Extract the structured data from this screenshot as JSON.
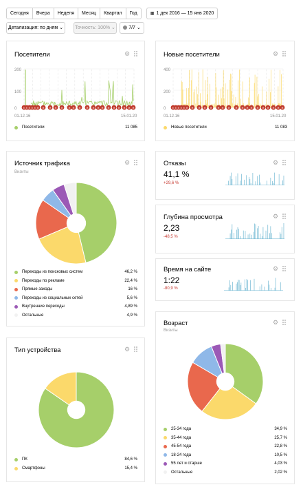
{
  "toolbar": {
    "periods": [
      "Сегодня",
      "Вчера",
      "Неделя",
      "Месяц",
      "Квартал",
      "Год"
    ],
    "date_range": "1 дек 2016 — 15 янв 2020",
    "detail": "Детализация: по дням",
    "accuracy": "Точность: 100%",
    "segments": "7/7"
  },
  "colors": {
    "green": "#a6cf6a",
    "yellow": "#fbd96b",
    "red": "#e9684d",
    "blue": "#8fb8e8",
    "purple": "#9b59b6",
    "white": "#f1f1f1",
    "teal": "#71b8d3",
    "marker": "#c0392b"
  },
  "visitors": {
    "title": "Посетители",
    "y_ticks": [
      "200",
      "100",
      "0"
    ],
    "x_ticks": [
      "01.12.16",
      "15.01.20"
    ],
    "legend": "Посетители",
    "total": "11 085"
  },
  "new_visitors": {
    "title": "Новые посетители",
    "y_ticks": [
      "400",
      "200",
      "0"
    ],
    "x_ticks": [
      "01.12.16",
      "15.01.20"
    ],
    "legend": "Новые посетители",
    "total": "11 083"
  },
  "traffic": {
    "title": "Источник трафика",
    "subtitle": "Визиты",
    "items": [
      {
        "label": "Переходы из поисковых систем",
        "value": "46,2 %",
        "color": "#a6cf6a"
      },
      {
        "label": "Переходы по рекламе",
        "value": "22,4 %",
        "color": "#fbd96b"
      },
      {
        "label": "Прямые заходы",
        "value": "16 %",
        "color": "#e9684d"
      },
      {
        "label": "Переходы из социальных сетей",
        "value": "5,6 %",
        "color": "#8fb8e8"
      },
      {
        "label": "Внутренние переходы",
        "value": "4,89 %",
        "color": "#9b59b6"
      },
      {
        "label": "Остальные",
        "value": "4,9 %",
        "color": "#f1f1f1"
      }
    ]
  },
  "bounce": {
    "title": "Отказы",
    "value": "41,1 %",
    "delta": "+29,6 %"
  },
  "depth": {
    "title": "Глубина просмотра",
    "value": "2,23",
    "delta": "-48,5 %"
  },
  "time_on_site": {
    "title": "Время на сайте",
    "value": "1:22",
    "delta": "-80,9 %"
  },
  "device": {
    "title": "Тип устройства",
    "items": [
      {
        "label": "ПК",
        "value": "84,6 %",
        "color": "#a6cf6a"
      },
      {
        "label": "Смартфоны",
        "value": "15,4 %",
        "color": "#fbd96b"
      }
    ]
  },
  "age": {
    "title": "Возраст",
    "subtitle": "Визиты",
    "items": [
      {
        "label": "25-34 года",
        "value": "34,9 %",
        "color": "#a6cf6a"
      },
      {
        "label": "35-44 года",
        "value": "25,7 %",
        "color": "#fbd96b"
      },
      {
        "label": "45-54 года",
        "value": "22,8 %",
        "color": "#e9684d"
      },
      {
        "label": "18-24 года",
        "value": "10,5 %",
        "color": "#8fb8e8"
      },
      {
        "label": "55 лет и старше",
        "value": "4,03 %",
        "color": "#9b59b6"
      },
      {
        "label": "Остальные",
        "value": "2,02 %",
        "color": "#f1f1f1"
      }
    ]
  }
}
